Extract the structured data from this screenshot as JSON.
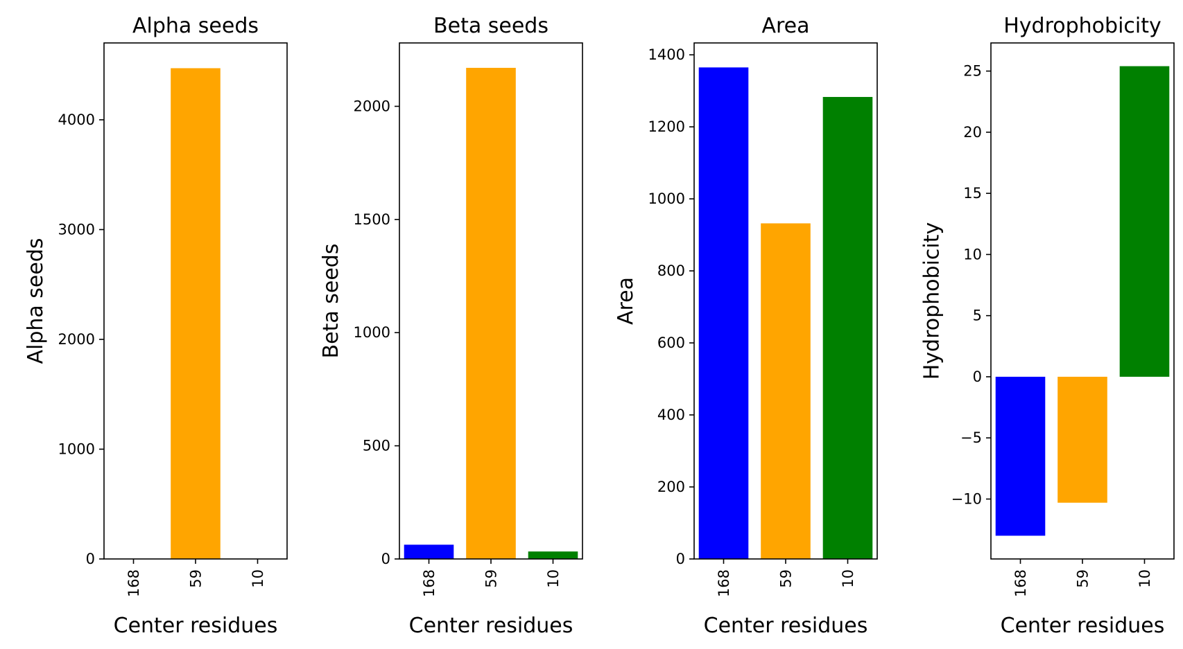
{
  "chart_data": [
    {
      "type": "bar",
      "title": "Alpha seeds",
      "xlabel": "Center residues",
      "ylabel": "Alpha seeds",
      "categories": [
        "168",
        "59",
        "10"
      ],
      "values": [
        0,
        4470,
        0
      ],
      "colors": [
        "#0000ff",
        "#ffa500",
        "#008000"
      ],
      "ylim": [
        0,
        4700
      ],
      "yticks": [
        0,
        1000,
        2000,
        3000,
        4000
      ],
      "ytick_labels": [
        "0",
        "1000",
        "2000",
        "3000",
        "4000"
      ],
      "grid": false
    },
    {
      "type": "bar",
      "title": "Beta seeds",
      "xlabel": "Center residues",
      "ylabel": "Beta seeds",
      "categories": [
        "168",
        "59",
        "10"
      ],
      "values": [
        63,
        2170,
        33
      ],
      "colors": [
        "#0000ff",
        "#ffa500",
        "#008000"
      ],
      "ylim": [
        0,
        2280
      ],
      "yticks": [
        0,
        500,
        1000,
        1500,
        2000
      ],
      "ytick_labels": [
        "0",
        "500",
        "1000",
        "1500",
        "2000"
      ],
      "grid": false
    },
    {
      "type": "bar",
      "title": "Area",
      "xlabel": "Center residues",
      "ylabel": "Area",
      "categories": [
        "168",
        "59",
        "10"
      ],
      "values": [
        1365,
        932,
        1283
      ],
      "colors": [
        "#0000ff",
        "#ffa500",
        "#008000"
      ],
      "ylim": [
        0,
        1433
      ],
      "yticks": [
        0,
        200,
        400,
        600,
        800,
        1000,
        1200,
        1400
      ],
      "ytick_labels": [
        "0",
        "200",
        "400",
        "600",
        "800",
        "1000",
        "1200",
        "1400"
      ],
      "grid": false
    },
    {
      "type": "bar",
      "title": "Hydrophobicity",
      "xlabel": "Center residues",
      "ylabel": "Hydrophobicity",
      "categories": [
        "168",
        "59",
        "10"
      ],
      "values": [
        -13,
        -10.3,
        25.4
      ],
      "colors": [
        "#0000ff",
        "#ffa500",
        "#008000"
      ],
      "ylim": [
        -14.9,
        27.3
      ],
      "yticks": [
        -10,
        -5,
        0,
        5,
        10,
        15,
        20,
        25
      ],
      "ytick_labels": [
        "−10",
        "−5",
        "0",
        "5",
        "10",
        "15",
        "20",
        "25"
      ],
      "grid": false
    }
  ]
}
